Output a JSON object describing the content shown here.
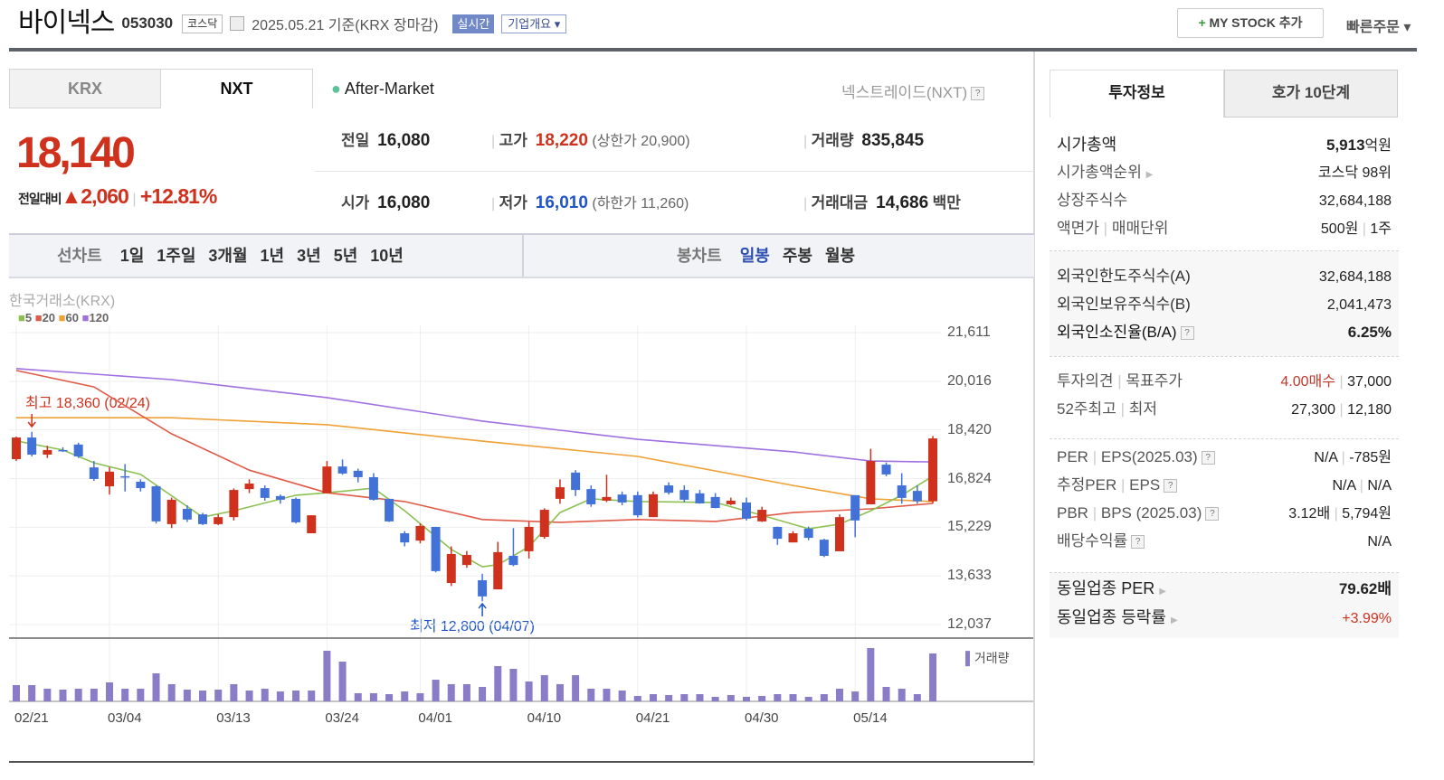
{
  "header": {
    "name": "바이넥스",
    "code": "053030",
    "market": "코스닥",
    "date": "2025.05.21",
    "basis": "기준(KRX 장마감)",
    "realtime": "실시간",
    "company_overview": "기업개요 ▾",
    "mystock": "MY STOCK 추가",
    "mystock_plus": "+",
    "quick_order": "빠른주문 ▾"
  },
  "market_tabs": [
    {
      "label": "KRX",
      "active": false
    },
    {
      "label": "NXT",
      "active": true
    }
  ],
  "session": "After-Market",
  "nxt_label": "넥스트레이드(NXT)",
  "quote": {
    "price": "18,140",
    "change_label": "전일대비",
    "change": "▲2,060",
    "change_pct": "+12.81%",
    "prev_label": "전일",
    "prev": "16,080",
    "high_label": "고가",
    "high": "18,220",
    "upper_limit": "(상한가 20,900)",
    "volume_label": "거래량",
    "volume": "835,845",
    "open_label": "시가",
    "open": "16,080",
    "low_label": "저가",
    "low": "16,010",
    "lower_limit": "(하한가 11,260)",
    "amount_label": "거래대금",
    "amount": "14,686",
    "amount_unit": "백만"
  },
  "period_bar": {
    "line_label": "선차트",
    "periods": [
      "1일",
      "1주일",
      "3개월",
      "1년",
      "3년",
      "5년",
      "10년"
    ],
    "candle_label": "봉차트",
    "candles": [
      "일봉",
      "주봉",
      "월봉"
    ],
    "active_candle": "일봉"
  },
  "colors": {
    "up": "#d0311d",
    "down": "#4272d7",
    "ma5": "#8cc152",
    "ma20": "#e05a48",
    "ma60": "#f0a035",
    "ma120": "#a070e0",
    "volume": "#8b7cc8",
    "accent": "#7289c7"
  },
  "chart_data": {
    "type": "candlestick",
    "source_label": "한국거래소(KRX)",
    "legend": [
      "5",
      "20",
      "60",
      "120"
    ],
    "y_ticks": [
      "21,611",
      "20,016",
      "18,420",
      "16,824",
      "15,229",
      "13,633",
      "12,037"
    ],
    "ylim": [
      12037,
      21611
    ],
    "x_ticks": [
      "02/21",
      "03/04",
      "03/13",
      "03/24",
      "04/01",
      "04/10",
      "04/21",
      "04/30",
      "05/14"
    ],
    "volume_label": "거래량",
    "annotations": {
      "high": "최고 18,360 (02/24)",
      "low": "최저 12,800 (04/07)"
    },
    "dates": [
      "02/21",
      "02/24",
      "02/25",
      "02/26",
      "02/27",
      "02/28",
      "03/04",
      "03/05",
      "03/06",
      "03/07",
      "03/10",
      "03/11",
      "03/12",
      "03/13",
      "03/14",
      "03/17",
      "03/18",
      "03/19",
      "03/20",
      "03/21",
      "03/24",
      "03/25",
      "03/26",
      "03/27",
      "03/28",
      "03/31",
      "04/01",
      "04/02",
      "04/03",
      "04/04",
      "04/07",
      "04/08",
      "04/09",
      "04/10",
      "04/11",
      "04/14",
      "04/15",
      "04/16",
      "04/17",
      "04/18",
      "04/21",
      "04/22",
      "04/23",
      "04/24",
      "04/25",
      "04/28",
      "04/29",
      "04/30",
      "05/02",
      "05/07",
      "05/08",
      "05/09",
      "05/12",
      "05/13",
      "05/14",
      "05/15",
      "05/16",
      "05/19",
      "05/20",
      "05/21"
    ],
    "ohlc": [
      [
        17460,
        18170,
        18200,
        17400
      ],
      [
        18170,
        17610,
        18360,
        17550
      ],
      [
        17610,
        17760,
        17900,
        17500
      ],
      [
        17760,
        17740,
        17850,
        17700
      ],
      [
        17940,
        17550,
        18000,
        17500
      ],
      [
        17190,
        16810,
        17400,
        16750
      ],
      [
        16570,
        17050,
        17200,
        16300
      ],
      [
        16900,
        16870,
        17300,
        16400
      ],
      [
        16720,
        16510,
        16800,
        16400
      ],
      [
        16570,
        15420,
        16600,
        15350
      ],
      [
        15330,
        16130,
        16200,
        15200
      ],
      [
        15830,
        15480,
        15950,
        15400
      ],
      [
        15650,
        15330,
        15700,
        15300
      ],
      [
        15330,
        15560,
        15650,
        15300
      ],
      [
        15560,
        16450,
        16500,
        15450
      ],
      [
        16480,
        16660,
        16800,
        16350
      ],
      [
        16510,
        16190,
        16600,
        16100
      ],
      [
        16250,
        16130,
        16300,
        16000
      ],
      [
        16160,
        15390,
        16200,
        15350
      ],
      [
        15030,
        15620,
        15620,
        15030
      ],
      [
        16340,
        17220,
        17400,
        16340
      ],
      [
        17220,
        16990,
        17450,
        16950
      ],
      [
        17080,
        16870,
        17150,
        16700
      ],
      [
        16870,
        16130,
        17000,
        16100
      ],
      [
        16160,
        15420,
        16160,
        15400
      ],
      [
        15030,
        14730,
        15100,
        14600
      ],
      [
        14790,
        15270,
        15350,
        14700
      ],
      [
        15240,
        13790,
        15240,
        13750
      ],
      [
        13400,
        14350,
        14600,
        13300
      ],
      [
        13990,
        14320,
        14450,
        13900
      ],
      [
        13490,
        12960,
        13700,
        12800
      ],
      [
        13190,
        14410,
        14750,
        13190
      ],
      [
        14290,
        13990,
        15200,
        13950
      ],
      [
        14440,
        15240,
        15400,
        14200
      ],
      [
        14910,
        15800,
        15850,
        14850
      ],
      [
        16160,
        16540,
        16800,
        16000
      ],
      [
        17020,
        16450,
        17100,
        16250
      ],
      [
        16480,
        15980,
        16600,
        15900
      ],
      [
        16100,
        16220,
        16950,
        16050
      ],
      [
        16300,
        16040,
        16400,
        15950
      ],
      [
        16280,
        15620,
        16400,
        15550
      ],
      [
        15560,
        16310,
        16400,
        15560
      ],
      [
        16600,
        16360,
        16700,
        16300
      ],
      [
        16450,
        16130,
        16600,
        16050
      ],
      [
        16340,
        16010,
        16450,
        16000
      ],
      [
        16220,
        15860,
        16350,
        15850
      ],
      [
        15980,
        16100,
        16200,
        15950
      ],
      [
        16040,
        15510,
        16200,
        15450
      ],
      [
        15420,
        15800,
        15900,
        15400
      ],
      [
        15240,
        14850,
        15250,
        14650
      ],
      [
        14730,
        15030,
        15100,
        14730
      ],
      [
        15180,
        14880,
        15250,
        14800
      ],
      [
        14820,
        14290,
        14850,
        14250
      ],
      [
        14440,
        15560,
        15650,
        14440
      ],
      [
        16280,
        15450,
        16280,
        14900
      ],
      [
        15980,
        17400,
        17800,
        15980
      ],
      [
        17280,
        16960,
        17350,
        16900
      ],
      [
        16600,
        16190,
        17000,
        16000
      ],
      [
        16420,
        16080,
        16600,
        16000
      ],
      [
        16080,
        18140,
        18220,
        16010
      ]
    ],
    "volume": [
      284000,
      284000,
      221000,
      205000,
      221000,
      221000,
      331000,
      221000,
      221000,
      489000,
      300000,
      205000,
      189000,
      205000,
      300000,
      189000,
      221000,
      173000,
      189000,
      189000,
      883000,
      694000,
      142000,
      142000,
      126000,
      173000,
      142000,
      378000,
      300000,
      300000,
      252000,
      615000,
      568000,
      347000,
      457000,
      300000,
      457000,
      221000,
      221000,
      189000,
      95000,
      126000,
      110000,
      126000,
      126000,
      79000,
      110000,
      79000,
      95000,
      126000,
      126000,
      79000,
      126000,
      221000,
      173000,
      930000,
      252000,
      221000,
      126000,
      835845
    ],
    "moving_averages": {
      "5": [
        [
          0,
          18060
        ],
        [
          3,
          17760
        ],
        [
          5,
          17340
        ],
        [
          8,
          16960
        ],
        [
          12,
          15560
        ],
        [
          14,
          15770
        ],
        [
          18,
          16280
        ],
        [
          20,
          16360
        ],
        [
          23,
          16510
        ],
        [
          25,
          15770
        ],
        [
          28,
          14500
        ],
        [
          30,
          13930
        ],
        [
          31,
          14000
        ],
        [
          33,
          14590
        ],
        [
          35,
          15710
        ],
        [
          37,
          16160
        ],
        [
          40,
          16070
        ],
        [
          45,
          16040
        ],
        [
          48,
          15620
        ],
        [
          51,
          15180
        ],
        [
          53,
          15330
        ],
        [
          55,
          15770
        ],
        [
          57,
          16280
        ],
        [
          59,
          16900
        ]
      ],
      "20": [
        [
          0,
          20370
        ],
        [
          5,
          19830
        ],
        [
          10,
          18290
        ],
        [
          15,
          17100
        ],
        [
          20,
          16360
        ],
        [
          25,
          16070
        ],
        [
          30,
          15480
        ],
        [
          35,
          15390
        ],
        [
          40,
          15480
        ],
        [
          45,
          15420
        ],
        [
          50,
          15710
        ],
        [
          55,
          15830
        ],
        [
          59,
          16010
        ]
      ],
      "60": [
        [
          0,
          18820
        ],
        [
          10,
          18820
        ],
        [
          20,
          18590
        ],
        [
          30,
          18050
        ],
        [
          40,
          17550
        ],
        [
          50,
          16600
        ],
        [
          55,
          16160
        ],
        [
          59,
          16070
        ]
      ],
      "120": [
        [
          0,
          20430
        ],
        [
          10,
          20070
        ],
        [
          20,
          19480
        ],
        [
          30,
          18710
        ],
        [
          40,
          18110
        ],
        [
          50,
          17700
        ],
        [
          55,
          17400
        ],
        [
          59,
          17370
        ]
      ]
    }
  },
  "invest_tabs": [
    {
      "label": "투자정보",
      "active": true
    },
    {
      "label": "호가 10단계",
      "active": false
    }
  ],
  "invest_info": {
    "market_cap_label": "시가총액",
    "market_cap": "5,913",
    "market_cap_unit": "억원",
    "rank_label": "시가총액순위",
    "rank": "코스닥 98위",
    "shares_label": "상장주식수",
    "shares": "32,684,188",
    "par_label": "액면가",
    "unit_label": "매매단위",
    "par": "500원",
    "unit": "1주",
    "foreign_limit_label": "외국인한도주식수(A)",
    "foreign_limit": "32,684,188",
    "foreign_hold_label": "외국인보유주식수(B)",
    "foreign_hold": "2,041,473",
    "foreign_ratio_label": "외국인소진율(B/A)",
    "foreign_ratio": "6.25%",
    "opinion_label": "투자의견",
    "target_label": "목표주가",
    "opinion": "4.00매수",
    "target": "37,000",
    "w52_label": "52주최고",
    "w52_low_label": "최저",
    "w52_high": "27,300",
    "w52_low": "12,180",
    "per_label": "PER",
    "eps_label": "EPS(2025.03)",
    "per": "N/A",
    "eps": "-785원",
    "est_per_label": "추정PER",
    "est_eps_label": "EPS",
    "est_per": "N/A",
    "est_eps": "N/A",
    "pbr_label": "PBR",
    "bps_label": "BPS (2025.03)",
    "pbr": "3.12배",
    "bps": "5,794원",
    "div_label": "배당수익률",
    "div": "N/A",
    "sector_per_label": "동일업종 PER",
    "sector_per": "79.62배",
    "sector_chg_label": "동일업종 등락률",
    "sector_chg": "+3.99%"
  }
}
